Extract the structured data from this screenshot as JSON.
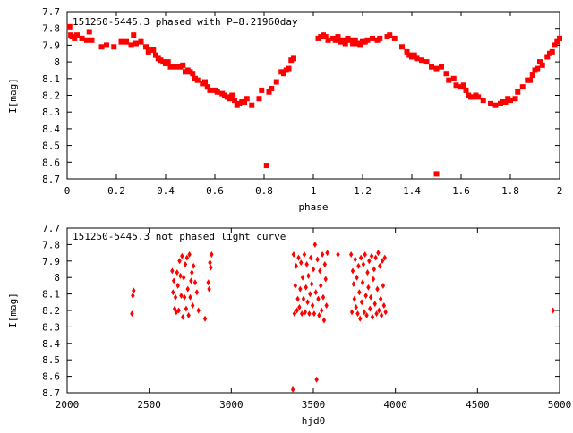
{
  "chart_data": [
    {
      "type": "scatter",
      "title": "151250-5445.3 phased with P=8.21960day",
      "xlabel": "phase",
      "ylabel": "I[mag]",
      "xlim": [
        0,
        2
      ],
      "ylim": [
        7.7,
        8.7
      ],
      "y_inverted": true,
      "grid": false,
      "x_ticks": [
        "0",
        "0.2",
        "0.4",
        "0.6",
        "0.8",
        "1",
        "1.2",
        "1.4",
        "1.6",
        "1.8",
        "2"
      ],
      "y_ticks": [
        "7.7",
        "7.8",
        "7.9",
        "8",
        "8.1",
        "8.2",
        "8.3",
        "8.4",
        "8.5",
        "8.6",
        "8.7"
      ],
      "color": "#ff0000",
      "marker": "square",
      "series": [
        {
          "points": [
            [
              0.01,
              7.79
            ],
            [
              0.015,
              7.84
            ],
            [
              0.02,
              7.85
            ],
            [
              0.03,
              7.86
            ],
            [
              0.04,
              7.84
            ],
            [
              0.06,
              7.86
            ],
            [
              0.08,
              7.87
            ],
            [
              0.09,
              7.82
            ],
            [
              0.1,
              7.87
            ],
            [
              0.14,
              7.91
            ],
            [
              0.16,
              7.9
            ],
            [
              0.19,
              7.91
            ],
            [
              0.22,
              7.88
            ],
            [
              0.24,
              7.88
            ],
            [
              0.26,
              7.9
            ],
            [
              0.27,
              7.84
            ],
            [
              0.28,
              7.89
            ],
            [
              0.3,
              7.88
            ],
            [
              0.32,
              7.91
            ],
            [
              0.33,
              7.94
            ],
            [
              0.34,
              7.93
            ],
            [
              0.35,
              7.93
            ],
            [
              0.36,
              7.96
            ],
            [
              0.37,
              7.98
            ],
            [
              0.38,
              7.99
            ],
            [
              0.39,
              8.0
            ],
            [
              0.4,
              8.01
            ],
            [
              0.41,
              8.0
            ],
            [
              0.42,
              8.03
            ],
            [
              0.44,
              8.03
            ],
            [
              0.46,
              8.03
            ],
            [
              0.47,
              8.02
            ],
            [
              0.48,
              8.06
            ],
            [
              0.49,
              8.05
            ],
            [
              0.5,
              8.06
            ],
            [
              0.51,
              8.07
            ],
            [
              0.52,
              8.1
            ],
            [
              0.53,
              8.11
            ],
            [
              0.55,
              8.13
            ],
            [
              0.56,
              8.12
            ],
            [
              0.57,
              8.15
            ],
            [
              0.58,
              8.17
            ],
            [
              0.6,
              8.17
            ],
            [
              0.61,
              8.18
            ],
            [
              0.63,
              8.19
            ],
            [
              0.64,
              8.2
            ],
            [
              0.65,
              8.21
            ],
            [
              0.66,
              8.22
            ],
            [
              0.67,
              8.2
            ],
            [
              0.68,
              8.23
            ],
            [
              0.69,
              8.26
            ],
            [
              0.7,
              8.25
            ],
            [
              0.71,
              8.24
            ],
            [
              0.72,
              8.24
            ],
            [
              0.73,
              8.22
            ],
            [
              0.75,
              8.26
            ],
            [
              0.78,
              8.22
            ],
            [
              0.79,
              8.17
            ],
            [
              0.81,
              8.62
            ],
            [
              0.82,
              8.18
            ],
            [
              0.83,
              8.16
            ],
            [
              0.85,
              8.12
            ],
            [
              0.87,
              8.06
            ],
            [
              0.88,
              8.07
            ],
            [
              0.89,
              8.05
            ],
            [
              0.9,
              8.04
            ],
            [
              0.91,
              7.99
            ],
            [
              0.92,
              7.98
            ],
            [
              1.02,
              7.86
            ],
            [
              1.03,
              7.85
            ],
            [
              1.04,
              7.84
            ],
            [
              1.05,
              7.85
            ],
            [
              1.06,
              7.87
            ],
            [
              1.08,
              7.86
            ],
            [
              1.09,
              7.87
            ],
            [
              1.1,
              7.85
            ],
            [
              1.11,
              7.88
            ],
            [
              1.12,
              7.87
            ],
            [
              1.13,
              7.89
            ],
            [
              1.14,
              7.86
            ],
            [
              1.15,
              7.87
            ],
            [
              1.16,
              7.89
            ],
            [
              1.17,
              7.87
            ],
            [
              1.18,
              7.89
            ],
            [
              1.19,
              7.9
            ],
            [
              1.2,
              7.88
            ],
            [
              1.21,
              7.88
            ],
            [
              1.22,
              7.87
            ],
            [
              1.24,
              7.86
            ],
            [
              1.26,
              7.87
            ],
            [
              1.27,
              7.86
            ],
            [
              1.3,
              7.85
            ],
            [
              1.31,
              7.84
            ],
            [
              1.33,
              7.86
            ],
            [
              1.36,
              7.91
            ],
            [
              1.38,
              7.94
            ],
            [
              1.39,
              7.96
            ],
            [
              1.4,
              7.97
            ],
            [
              1.41,
              7.96
            ],
            [
              1.42,
              7.98
            ],
            [
              1.44,
              7.99
            ],
            [
              1.46,
              8.0
            ],
            [
              1.48,
              8.03
            ],
            [
              1.5,
              8.04
            ],
            [
              1.5,
              8.67
            ],
            [
              1.52,
              8.03
            ],
            [
              1.54,
              8.07
            ],
            [
              1.55,
              8.11
            ],
            [
              1.57,
              8.1
            ],
            [
              1.58,
              8.14
            ],
            [
              1.6,
              8.15
            ],
            [
              1.61,
              8.14
            ],
            [
              1.62,
              8.17
            ],
            [
              1.63,
              8.2
            ],
            [
              1.64,
              8.21
            ],
            [
              1.65,
              8.21
            ],
            [
              1.66,
              8.2
            ],
            [
              1.67,
              8.21
            ],
            [
              1.69,
              8.23
            ],
            [
              1.72,
              8.25
            ],
            [
              1.74,
              8.26
            ],
            [
              1.76,
              8.25
            ],
            [
              1.77,
              8.24
            ],
            [
              1.78,
              8.24
            ],
            [
              1.79,
              8.22
            ],
            [
              1.8,
              8.23
            ],
            [
              1.82,
              8.22
            ],
            [
              1.83,
              8.18
            ],
            [
              1.85,
              8.15
            ],
            [
              1.87,
              8.11
            ],
            [
              1.88,
              8.11
            ],
            [
              1.89,
              8.08
            ],
            [
              1.9,
              8.05
            ],
            [
              1.91,
              8.04
            ],
            [
              1.92,
              8.0
            ],
            [
              1.93,
              8.02
            ],
            [
              1.95,
              7.97
            ],
            [
              1.96,
              7.95
            ],
            [
              1.97,
              7.94
            ],
            [
              1.98,
              7.9
            ],
            [
              1.99,
              7.88
            ],
            [
              2.0,
              7.86
            ]
          ]
        }
      ]
    },
    {
      "type": "scatter",
      "title": "151250-5445.3 not phased light curve",
      "xlabel": "hjd0",
      "ylabel": "I[mag]",
      "xlim": [
        2000,
        5000
      ],
      "ylim": [
        7.7,
        8.7
      ],
      "y_inverted": true,
      "grid": false,
      "x_ticks": [
        "2000",
        "2500",
        "3000",
        "3500",
        "4000",
        "4500",
        "5000"
      ],
      "y_ticks": [
        "7.7",
        "7.8",
        "7.9",
        "8",
        "8.1",
        "8.2",
        "8.3",
        "8.4",
        "8.5",
        "8.6",
        "8.7"
      ],
      "color": "#ff0000",
      "marker": "diamond",
      "series": [
        {
          "points": [
            [
              2395,
              8.22
            ],
            [
              2400,
              8.11
            ],
            [
              2405,
              8.08
            ],
            [
              2640,
              7.96
            ],
            [
              2645,
              8.09
            ],
            [
              2650,
              8.02
            ],
            [
              2655,
              8.19
            ],
            [
              2660,
              8.12
            ],
            [
              2665,
              8.21
            ],
            [
              2670,
              7.97
            ],
            [
              2675,
              8.05
            ],
            [
              2680,
              8.2
            ],
            [
              2685,
              7.9
            ],
            [
              2690,
              7.99
            ],
            [
              2695,
              8.11
            ],
            [
              2700,
              7.87
            ],
            [
              2705,
              8.24
            ],
            [
              2710,
              8.0
            ],
            [
              2715,
              8.12
            ],
            [
              2720,
              7.92
            ],
            [
              2725,
              8.19
            ],
            [
              2730,
              7.88
            ],
            [
              2735,
              8.07
            ],
            [
              2740,
              8.23
            ],
            [
              2745,
              7.86
            ],
            [
              2750,
              8.12
            ],
            [
              2755,
              8.02
            ],
            [
              2760,
              7.97
            ],
            [
              2765,
              8.17
            ],
            [
              2770,
              7.93
            ],
            [
              2780,
              8.03
            ],
            [
              2790,
              8.09
            ],
            [
              2800,
              8.2
            ],
            [
              2840,
              8.25
            ],
            [
              2860,
              8.03
            ],
            [
              2865,
              8.07
            ],
            [
              2870,
              7.91
            ],
            [
              2875,
              7.94
            ],
            [
              2880,
              7.86
            ],
            [
              3380,
              7.86
            ],
            [
              3385,
              8.22
            ],
            [
              3390,
              8.05
            ],
            [
              3395,
              7.93
            ],
            [
              3400,
              8.2
            ],
            [
              3405,
              8.13
            ],
            [
              3410,
              7.88
            ],
            [
              3415,
              8.18
            ],
            [
              3420,
              8.07
            ],
            [
              3425,
              7.91
            ],
            [
              3430,
              8.22
            ],
            [
              3435,
              8.0
            ],
            [
              3440,
              8.13
            ],
            [
              3445,
              7.86
            ],
            [
              3450,
              8.21
            ],
            [
              3455,
              8.06
            ],
            [
              3460,
              7.92
            ],
            [
              3465,
              8.15
            ],
            [
              3470,
              7.99
            ],
            [
              3475,
              8.22
            ],
            [
              3480,
              8.1
            ],
            [
              3485,
              7.88
            ],
            [
              3490,
              8.04
            ],
            [
              3495,
              8.17
            ],
            [
              3500,
              7.95
            ],
            [
              3505,
              8.22
            ],
            [
              3510,
              7.8
            ],
            [
              3515,
              8.09
            ],
            [
              3520,
              8.62
            ],
            [
              3525,
              7.89
            ],
            [
              3530,
              8.13
            ],
            [
              3535,
              8.23
            ],
            [
              3540,
              7.96
            ],
            [
              3545,
              8.05
            ],
            [
              3550,
              8.2
            ],
            [
              3555,
              7.86
            ],
            [
              3560,
              8.12
            ],
            [
              3565,
              8.26
            ],
            [
              3570,
              7.92
            ],
            [
              3575,
              8.01
            ],
            [
              3580,
              8.17
            ],
            [
              3585,
              7.85
            ],
            [
              3650,
              7.86
            ],
            [
              3730,
              7.86
            ],
            [
              3735,
              8.21
            ],
            [
              3740,
              7.96
            ],
            [
              3745,
              8.04
            ],
            [
              3750,
              8.13
            ],
            [
              3755,
              7.89
            ],
            [
              3760,
              8.18
            ],
            [
              3765,
              8.0
            ],
            [
              3770,
              8.22
            ],
            [
              3775,
              7.93
            ],
            [
              3780,
              8.09
            ],
            [
              3785,
              8.25
            ],
            [
              3790,
              7.88
            ],
            [
              3795,
              8.15
            ],
            [
              3800,
              8.03
            ],
            [
              3805,
              7.92
            ],
            [
              3810,
              8.21
            ],
            [
              3815,
              7.86
            ],
            [
              3820,
              8.11
            ],
            [
              3825,
              8.23
            ],
            [
              3830,
              7.97
            ],
            [
              3835,
              8.06
            ],
            [
              3840,
              7.9
            ],
            [
              3845,
              8.19
            ],
            [
              3850,
              8.12
            ],
            [
              3855,
              7.87
            ],
            [
              3860,
              8.24
            ],
            [
              3865,
              8.01
            ],
            [
              3870,
              7.95
            ],
            [
              3875,
              8.16
            ],
            [
              3880,
              7.88
            ],
            [
              3885,
              8.22
            ],
            [
              3890,
              8.07
            ],
            [
              3895,
              7.85
            ],
            [
              3900,
              8.2
            ],
            [
              3905,
              7.93
            ],
            [
              3910,
              8.13
            ],
            [
              3915,
              8.23
            ],
            [
              3920,
              7.9
            ],
            [
              3925,
              8.05
            ],
            [
              3930,
              8.17
            ],
            [
              3935,
              7.88
            ],
            [
              3940,
              8.21
            ],
            [
              3375,
              8.68
            ],
            [
              4960,
              8.2
            ]
          ]
        }
      ]
    }
  ]
}
